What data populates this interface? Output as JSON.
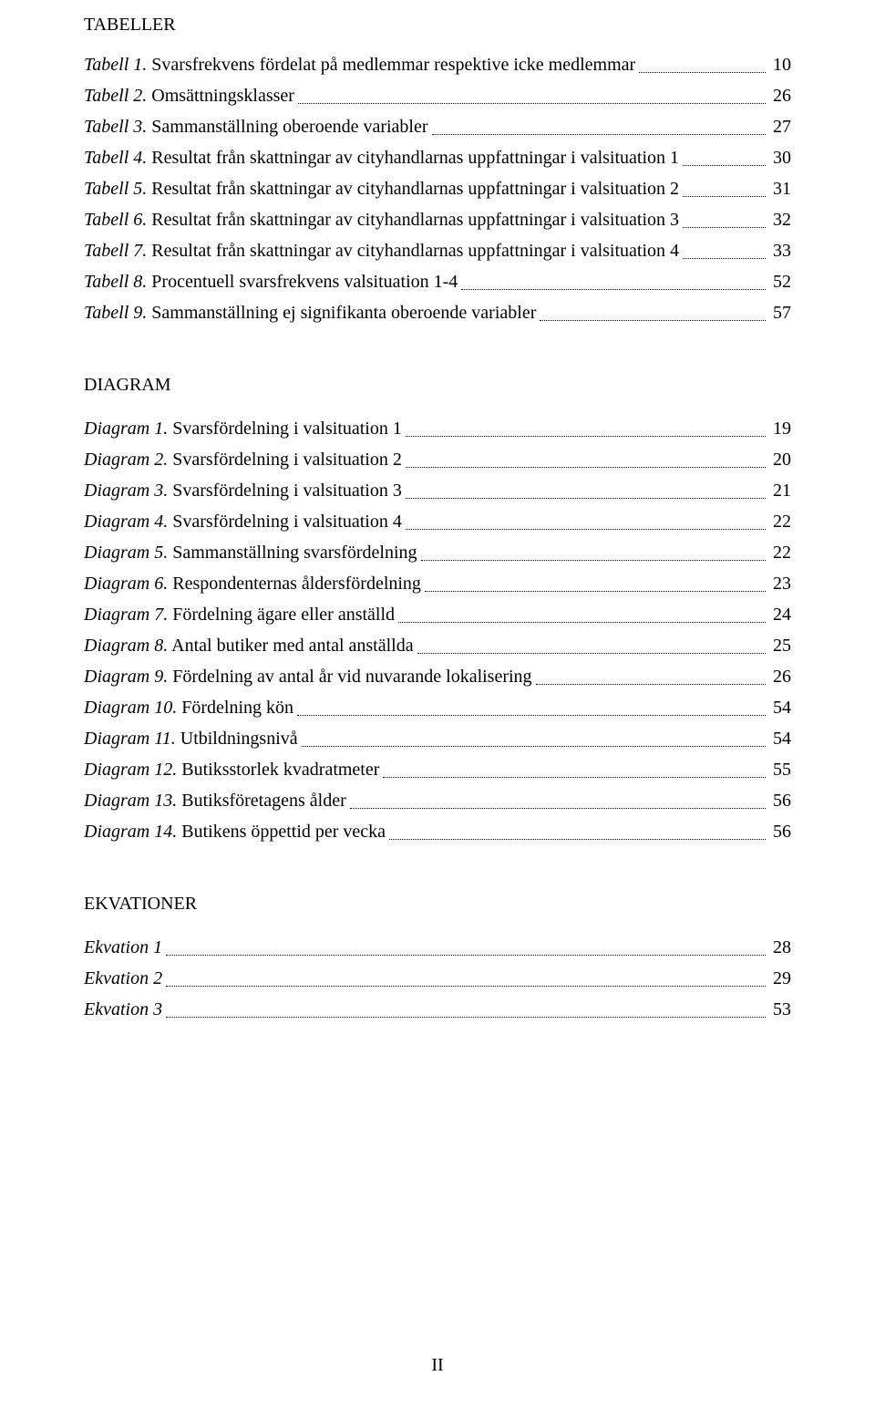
{
  "text_color": "#000000",
  "background_color": "#ffffff",
  "font_family": "Times New Roman",
  "base_font_size_pt": 12,
  "sections": {
    "tabeller": {
      "heading": "TABELLER",
      "items": [
        {
          "label": "Tabell 1.",
          "desc": " Svarsfrekvens fördelat på medlemmar respektive icke medlemmar",
          "page": "10"
        },
        {
          "label": "Tabell 2.",
          "desc": " Omsättningsklasser",
          "page": "26"
        },
        {
          "label": "Tabell 3.",
          "desc": " Sammanställning oberoende variabler",
          "page": "27"
        },
        {
          "label": "Tabell 4.",
          "desc": " Resultat från skattningar av cityhandlarnas uppfattningar i valsituation 1",
          "page": "30"
        },
        {
          "label": "Tabell 5.",
          "desc": " Resultat från skattningar av cityhandlarnas uppfattningar i valsituation 2",
          "page": "31"
        },
        {
          "label": "Tabell 6.",
          "desc": " Resultat från skattningar av cityhandlarnas uppfattningar i valsituation 3",
          "page": "32"
        },
        {
          "label": "Tabell 7.",
          "desc": " Resultat från skattningar av cityhandlarnas uppfattningar i valsituation 4",
          "page": "33"
        },
        {
          "label": "Tabell 8.",
          "desc": " Procentuell svarsfrekvens valsituation 1-4",
          "page": "52"
        },
        {
          "label": "Tabell 9.",
          "desc": " Sammanställning ej signifikanta oberoende variabler",
          "page": "57"
        }
      ]
    },
    "diagram": {
      "heading": "DIAGRAM",
      "items": [
        {
          "label": "Diagram 1.",
          "desc": " Svarsfördelning i valsituation 1",
          "page": "19"
        },
        {
          "label": "Diagram 2.",
          "desc": " Svarsfördelning i valsituation 2",
          "page": "20"
        },
        {
          "label": "Diagram 3.",
          "desc": " Svarsfördelning i valsituation 3",
          "page": "21"
        },
        {
          "label": "Diagram 4.",
          "desc": " Svarsfördelning i valsituation 4",
          "page": "22"
        },
        {
          "label": "Diagram 5.",
          "desc": " Sammanställning svarsfördelning",
          "page": "22"
        },
        {
          "label": "Diagram 6.",
          "desc": " Respondenternas åldersfördelning",
          "page": "23"
        },
        {
          "label": "Diagram 7.",
          "desc": " Fördelning ägare eller anställd",
          "page": "24"
        },
        {
          "label": "Diagram 8.",
          "desc": " Antal butiker med antal anställda",
          "page": "25"
        },
        {
          "label": "Diagram 9.",
          "desc": " Fördelning av antal år vid nuvarande lokalisering",
          "page": "26"
        },
        {
          "label": "Diagram 10.",
          "desc": " Fördelning kön",
          "page": "54"
        },
        {
          "label": "Diagram 11.",
          "desc": " Utbildningsnivå",
          "page": "54"
        },
        {
          "label": "Diagram 12.",
          "desc": " Butiksstorlek kvadratmeter",
          "page": "55"
        },
        {
          "label": "Diagram 13.",
          "desc": " Butiksföretagens ålder",
          "page": "56"
        },
        {
          "label": "Diagram 14.",
          "desc": " Butikens öppettid per vecka",
          "page": "56"
        }
      ]
    },
    "ekvationer": {
      "heading": "EKVATIONER",
      "items": [
        {
          "label": "Ekvation 1",
          "desc": "",
          "page": "28"
        },
        {
          "label": "Ekvation 2",
          "desc": "",
          "page": "29"
        },
        {
          "label": "Ekvation 3",
          "desc": "",
          "page": "53"
        }
      ]
    }
  },
  "page_number_label": "II"
}
